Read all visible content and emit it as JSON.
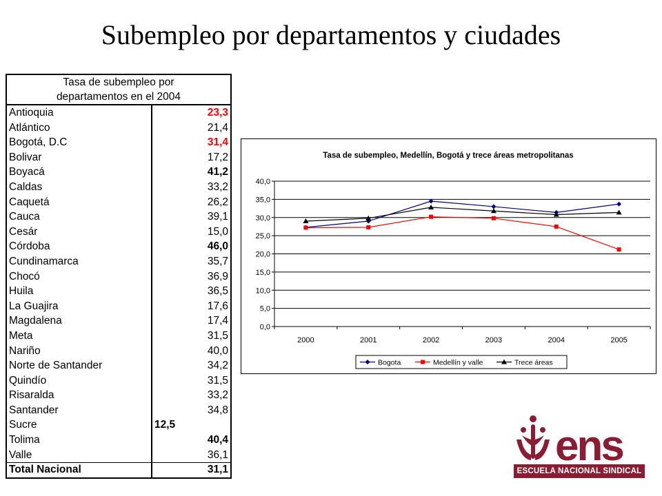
{
  "page": {
    "title": "Subempleo por departamentos y ciudades"
  },
  "table": {
    "header_line1": "Tasa de subempleo por",
    "header_line2": "departamentos en el 2004",
    "rows": [
      {
        "name": "Antioquia",
        "value": "23,3",
        "style": "bold-red"
      },
      {
        "name": "Atlántico",
        "value": "21,4",
        "style": "normal"
      },
      {
        "name": "Bogotá, D.C",
        "value": "31,4",
        "style": "bold-red"
      },
      {
        "name": "Bolivar",
        "value": "17,2",
        "style": "normal"
      },
      {
        "name": "Boyacá",
        "value": "41,2",
        "style": "bold"
      },
      {
        "name": "Caldas",
        "value": "33,2",
        "style": "normal"
      },
      {
        "name": "Caquetá",
        "value": "26,2",
        "style": "normal"
      },
      {
        "name": "Cauca",
        "value": "39,1",
        "style": "normal"
      },
      {
        "name": "Cesár",
        "value": "15,0",
        "style": "normal"
      },
      {
        "name": "Córdoba",
        "value": "46,0",
        "style": "bold"
      },
      {
        "name": "Cundinamarca",
        "value": "35,7",
        "style": "normal"
      },
      {
        "name": "Chocó",
        "value": "36,9",
        "style": "normal"
      },
      {
        "name": "Huila",
        "value": "36,5",
        "style": "normal"
      },
      {
        "name": "La Guajira",
        "value": "17,6",
        "style": "normal"
      },
      {
        "name": "Magdalena",
        "value": "17,4",
        "style": "normal"
      },
      {
        "name": "Meta",
        "value": "31,5",
        "style": "normal"
      },
      {
        "name": "Nariño",
        "value": "40,0",
        "style": "normal"
      },
      {
        "name": "Norte de Santander",
        "value": "34,2",
        "style": "normal"
      },
      {
        "name": "Quindío",
        "value": "31,5",
        "style": "normal"
      },
      {
        "name": "Risaralda",
        "value": "33,2",
        "style": "normal"
      },
      {
        "name": "Santander",
        "value": "34,8",
        "style": "normal"
      },
      {
        "name": "Sucre",
        "value": "12,5",
        "style": "bold-left"
      },
      {
        "name": "Tolima",
        "value": "40,4",
        "style": "bold"
      },
      {
        "name": "Valle",
        "value": "36,1",
        "style": "normal"
      }
    ],
    "total": {
      "name": "Total Nacional",
      "value": "31,1"
    }
  },
  "chart_data": {
    "type": "line",
    "title": "Tasa de subempleo, Medellín, Bogotá y trece áreas metropolitanas",
    "x": [
      "2000",
      "2001",
      "2002",
      "2003",
      "2004",
      "2005"
    ],
    "ylim": [
      0,
      40
    ],
    "yticks": [
      "0,0",
      "5,0",
      "10,0",
      "15,0",
      "20,0",
      "25,0",
      "30,0",
      "35,0",
      "40,0"
    ],
    "grid": true,
    "legend_position": "bottom",
    "series": [
      {
        "name": "Bogota",
        "color": "#000080",
        "marker": "diamond",
        "values": [
          27.3,
          29.0,
          34.5,
          33.0,
          31.4,
          33.7
        ]
      },
      {
        "name": "Medellín y valle",
        "color": "#ff0000",
        "marker": "square",
        "values": [
          27.2,
          27.3,
          30.2,
          29.8,
          27.5,
          21.2
        ]
      },
      {
        "name": "Trece áreas",
        "color": "#000000",
        "marker": "triangle",
        "values": [
          29.0,
          29.8,
          32.8,
          31.8,
          30.8,
          31.4
        ]
      }
    ]
  },
  "logo": {
    "wordmark": "ens",
    "caption": "ESCUELA NACIONAL SINDICAL",
    "color": "#8a1c33"
  }
}
